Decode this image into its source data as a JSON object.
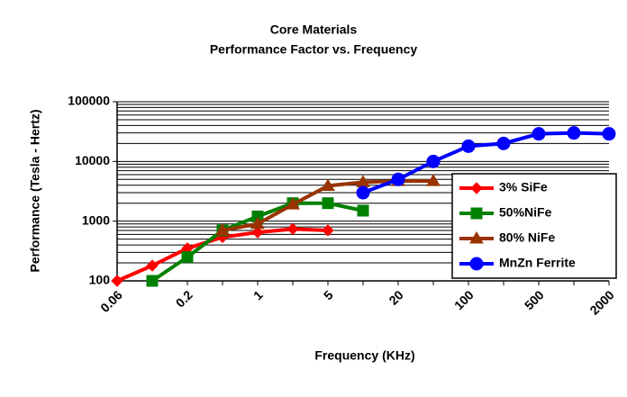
{
  "chart_data": {
    "type": "line",
    "title": "Core Materials",
    "subtitle": "Performance Factor vs. Frequency",
    "x_label": "Frequency (KHz)",
    "y_label": "Performance (Tesla - Hertz)",
    "categories": [
      "0.06",
      null,
      "0.2",
      null,
      "1",
      null,
      "5",
      null,
      "20",
      null,
      "100",
      null,
      "500",
      null,
      "2000"
    ],
    "ylim": [
      100,
      100000
    ],
    "yticks": [
      100,
      1000,
      10000,
      100000
    ],
    "log_y": true,
    "grid": true,
    "minor_grid": true,
    "legend": "right",
    "series": [
      {
        "name": "3% SiFe",
        "color": "#ff0000",
        "marker": "diamond",
        "values": [
          100,
          180,
          350,
          540,
          650,
          740,
          700,
          null,
          null,
          null,
          null,
          null,
          null,
          null,
          null
        ]
      },
      {
        "name": "50%NiFe",
        "color": "#008000",
        "marker": "square",
        "values": [
          null,
          100,
          250,
          700,
          1200,
          2000,
          2000,
          1500,
          null,
          null,
          null,
          null,
          null,
          null,
          null
        ]
      },
      {
        "name": "80% NiFe",
        "color": "#993300",
        "marker": "triangle",
        "values": [
          null,
          null,
          null,
          700,
          900,
          1900,
          3900,
          4500,
          4700,
          4700,
          null,
          null,
          null,
          null,
          null
        ]
      },
      {
        "name": "MnZn Ferrite",
        "color": "#0000ff",
        "marker": "circle",
        "values": [
          null,
          null,
          null,
          null,
          null,
          null,
          null,
          3000,
          5000,
          10000,
          18000,
          20000,
          29000,
          30000,
          29000
        ]
      }
    ]
  }
}
